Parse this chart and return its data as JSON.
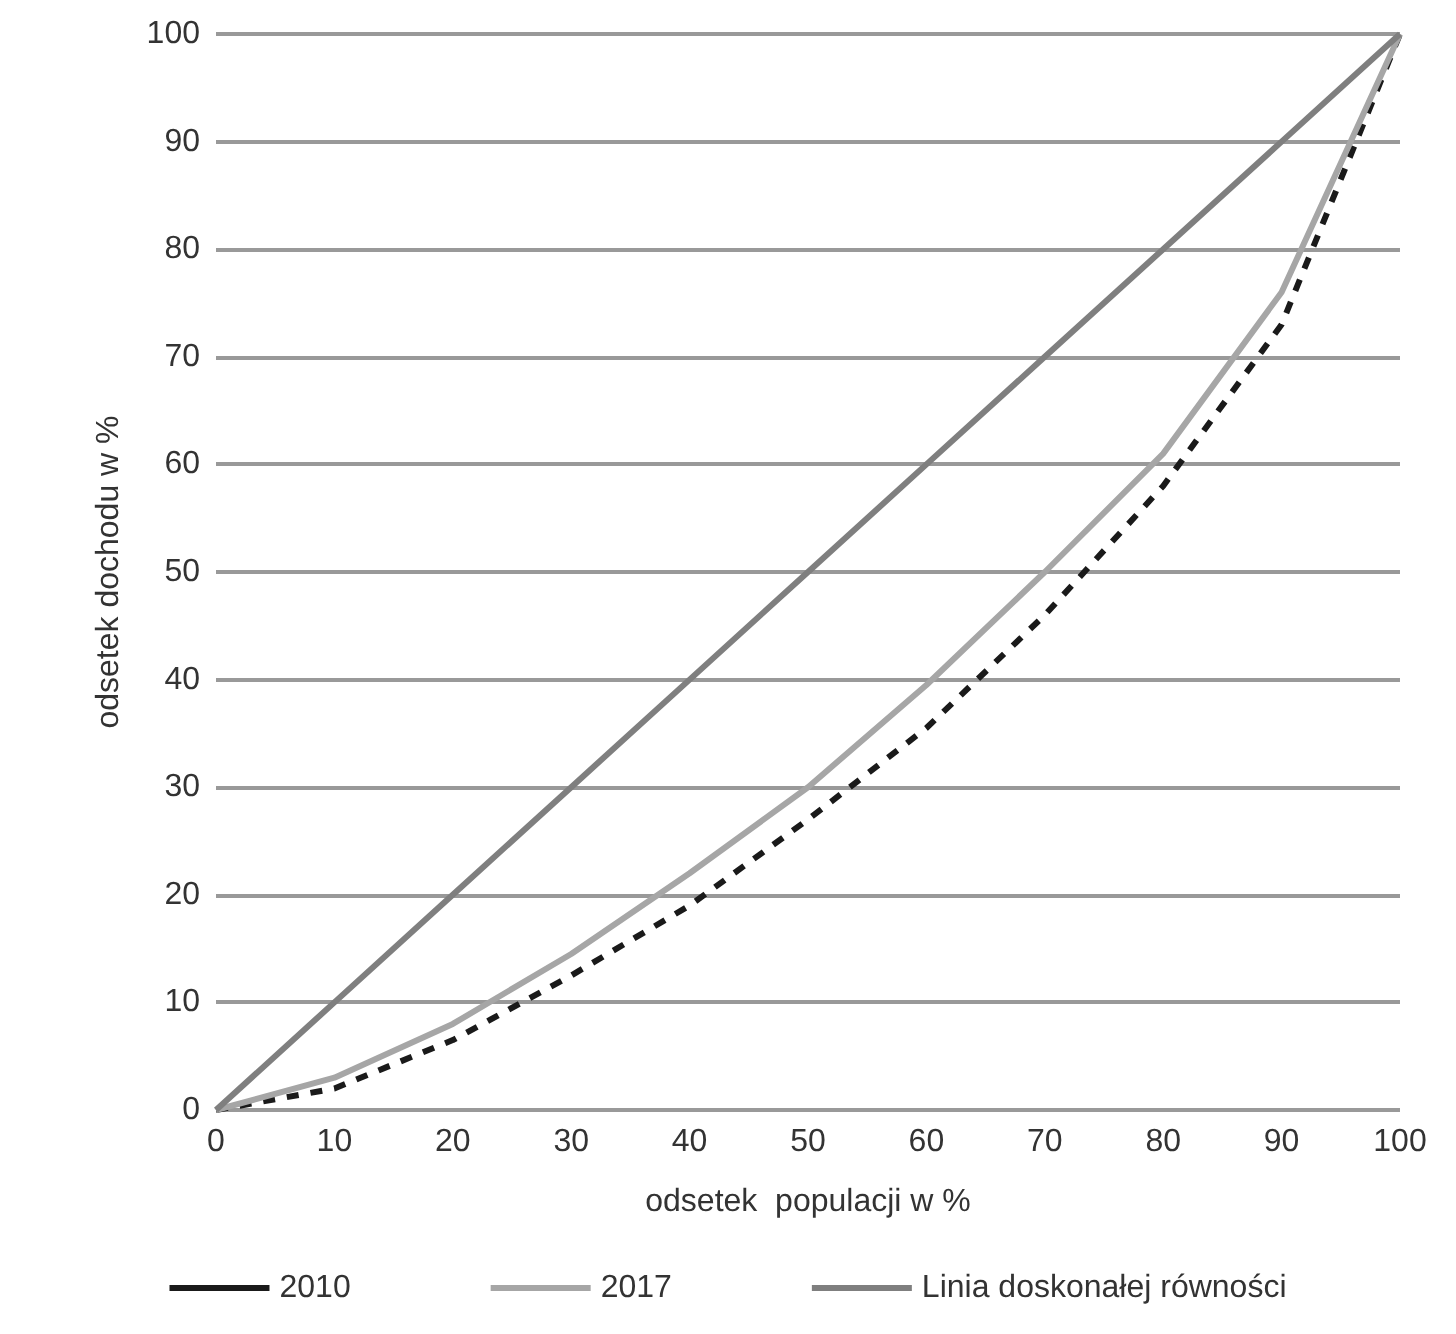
{
  "chart_data": {
    "type": "line",
    "xlabel": "odsetek  populacji w %",
    "ylabel": "odsetek dochodu w %",
    "x": [
      0,
      10,
      20,
      30,
      40,
      50,
      60,
      70,
      80,
      90,
      100
    ],
    "series": [
      {
        "name": "2010",
        "color": "#1a1a1a",
        "line_style": "dashed",
        "values": [
          0,
          2,
          6.5,
          12.5,
          19,
          27,
          35.5,
          46,
          58,
          73,
          100
        ]
      },
      {
        "name": "2017",
        "color": "#a6a6a6",
        "line_style": "solid",
        "values": [
          0,
          3,
          8,
          14.5,
          22,
          30,
          39.5,
          50,
          61,
          76,
          100
        ]
      },
      {
        "name": "Linia doskonałej równości",
        "color": "#7f7f7f",
        "line_style": "solid",
        "values": [
          0,
          10,
          20,
          30,
          40,
          50,
          60,
          70,
          80,
          90,
          100
        ]
      }
    ],
    "xlim": [
      0,
      100
    ],
    "xticks": [
      0,
      10,
      20,
      30,
      40,
      50,
      60,
      70,
      80,
      90,
      100
    ],
    "ylim": [
      0,
      100
    ],
    "yticks": [
      0,
      10,
      20,
      30,
      40,
      50,
      60,
      70,
      80,
      90,
      100
    ],
    "grid": "y",
    "legend": "bottom",
    "marker": "none"
  }
}
